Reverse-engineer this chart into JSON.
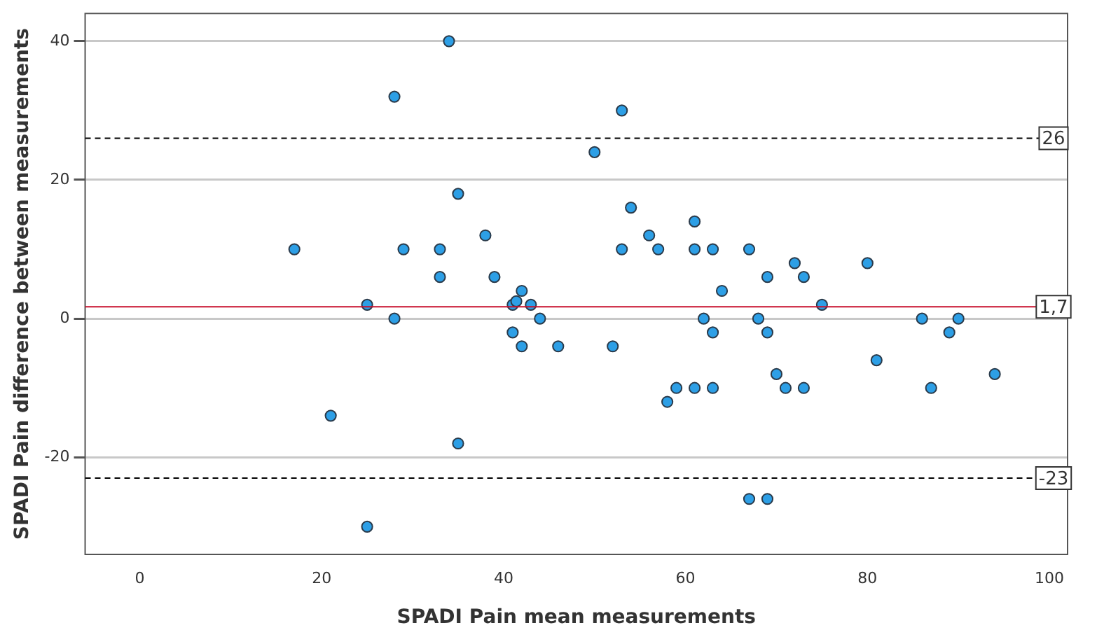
{
  "chart_data": {
    "type": "scatter",
    "xlabel": "SPADI Pain mean measurements",
    "ylabel": "SPADI Pain difference between measurements",
    "series": [
      {
        "color": "#2d9fe6",
        "x": [
          17,
          21,
          25,
          25,
          28,
          28,
          29,
          33,
          33,
          34,
          35,
          35,
          38,
          39,
          41,
          41.4,
          41,
          42,
          42,
          43,
          44,
          46,
          50,
          52,
          53,
          53,
          54,
          56,
          57,
          58,
          59,
          61,
          61,
          61,
          62,
          63,
          63,
          63,
          64,
          67,
          67,
          68,
          69,
          69,
          69,
          70,
          71,
          72,
          73,
          73,
          75,
          80,
          81,
          86,
          87,
          89,
          90,
          94
        ],
        "values": [
          10,
          -14,
          2,
          -30,
          32,
          0,
          10,
          10,
          6,
          40,
          18,
          -18,
          12,
          6,
          2,
          2.5,
          -2,
          4,
          -4,
          2,
          0,
          -4,
          24,
          -4,
          30,
          10,
          16,
          12,
          10,
          -12,
          -10,
          14,
          10,
          -10,
          0,
          10,
          -2,
          -10,
          4,
          10,
          -26,
          0,
          6,
          -2,
          -26,
          -8,
          -10,
          8,
          6,
          -10,
          2,
          8,
          -6,
          0,
          -10,
          -2,
          0,
          -8
        ]
      }
    ],
    "xlim": [
      -6,
      102
    ],
    "ylim": [
      -34,
      44
    ],
    "xticks": [
      0,
      20,
      40,
      60,
      80,
      100
    ],
    "yticks": [
      -20,
      0,
      20,
      40
    ],
    "grid": "y",
    "marker": "circle",
    "legend": false,
    "ref_lines": [
      {
        "axis": "y",
        "value": 26,
        "label": "26",
        "color": "#000000",
        "line_style": "dashed"
      },
      {
        "axis": "y",
        "value": 1.7,
        "label": "1,7",
        "color": "#c8102e",
        "line_style": "solid"
      },
      {
        "axis": "y",
        "value": -23,
        "label": "-23",
        "color": "#000000",
        "line_style": "dashed"
      }
    ]
  }
}
